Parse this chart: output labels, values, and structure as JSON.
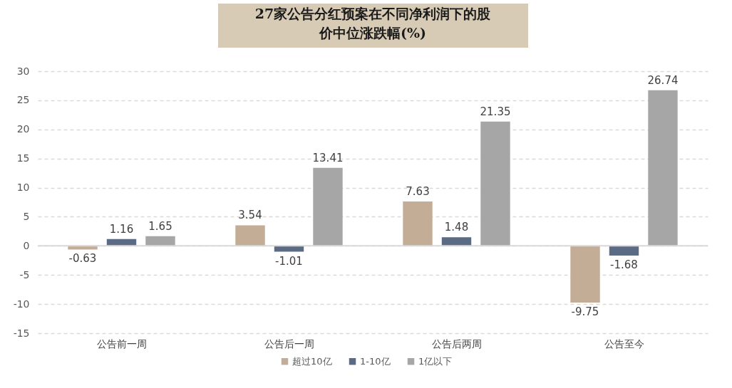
{
  "chart_data": {
    "type": "bar",
    "title": "27家公告分红预案在不同净利润下的股价中位涨跌幅(%)",
    "categories": [
      "公告前一周",
      "公告后一周",
      "公告后两周",
      "公告至今"
    ],
    "series": [
      {
        "name": "超过10亿",
        "color": "#c3ad97",
        "values": [
          -0.63,
          3.54,
          7.63,
          -9.75
        ]
      },
      {
        "name": "1-10亿",
        "color": "#5b6b83",
        "values": [
          1.16,
          -1.01,
          1.48,
          -1.68
        ]
      },
      {
        "name": "1亿以下",
        "color": "#a6a6a6",
        "values": [
          1.65,
          13.41,
          21.35,
          26.74
        ]
      }
    ],
    "ylim": [
      -15,
      30
    ],
    "yticks": [
      -15,
      -10,
      -5,
      0,
      5,
      10,
      15,
      20,
      25,
      30
    ],
    "ref_lines": [
      {
        "axis": "y",
        "value": 0,
        "color": "#d9d9d9"
      }
    ],
    "grid": "y",
    "legend": "bottom",
    "data_labels": true
  }
}
